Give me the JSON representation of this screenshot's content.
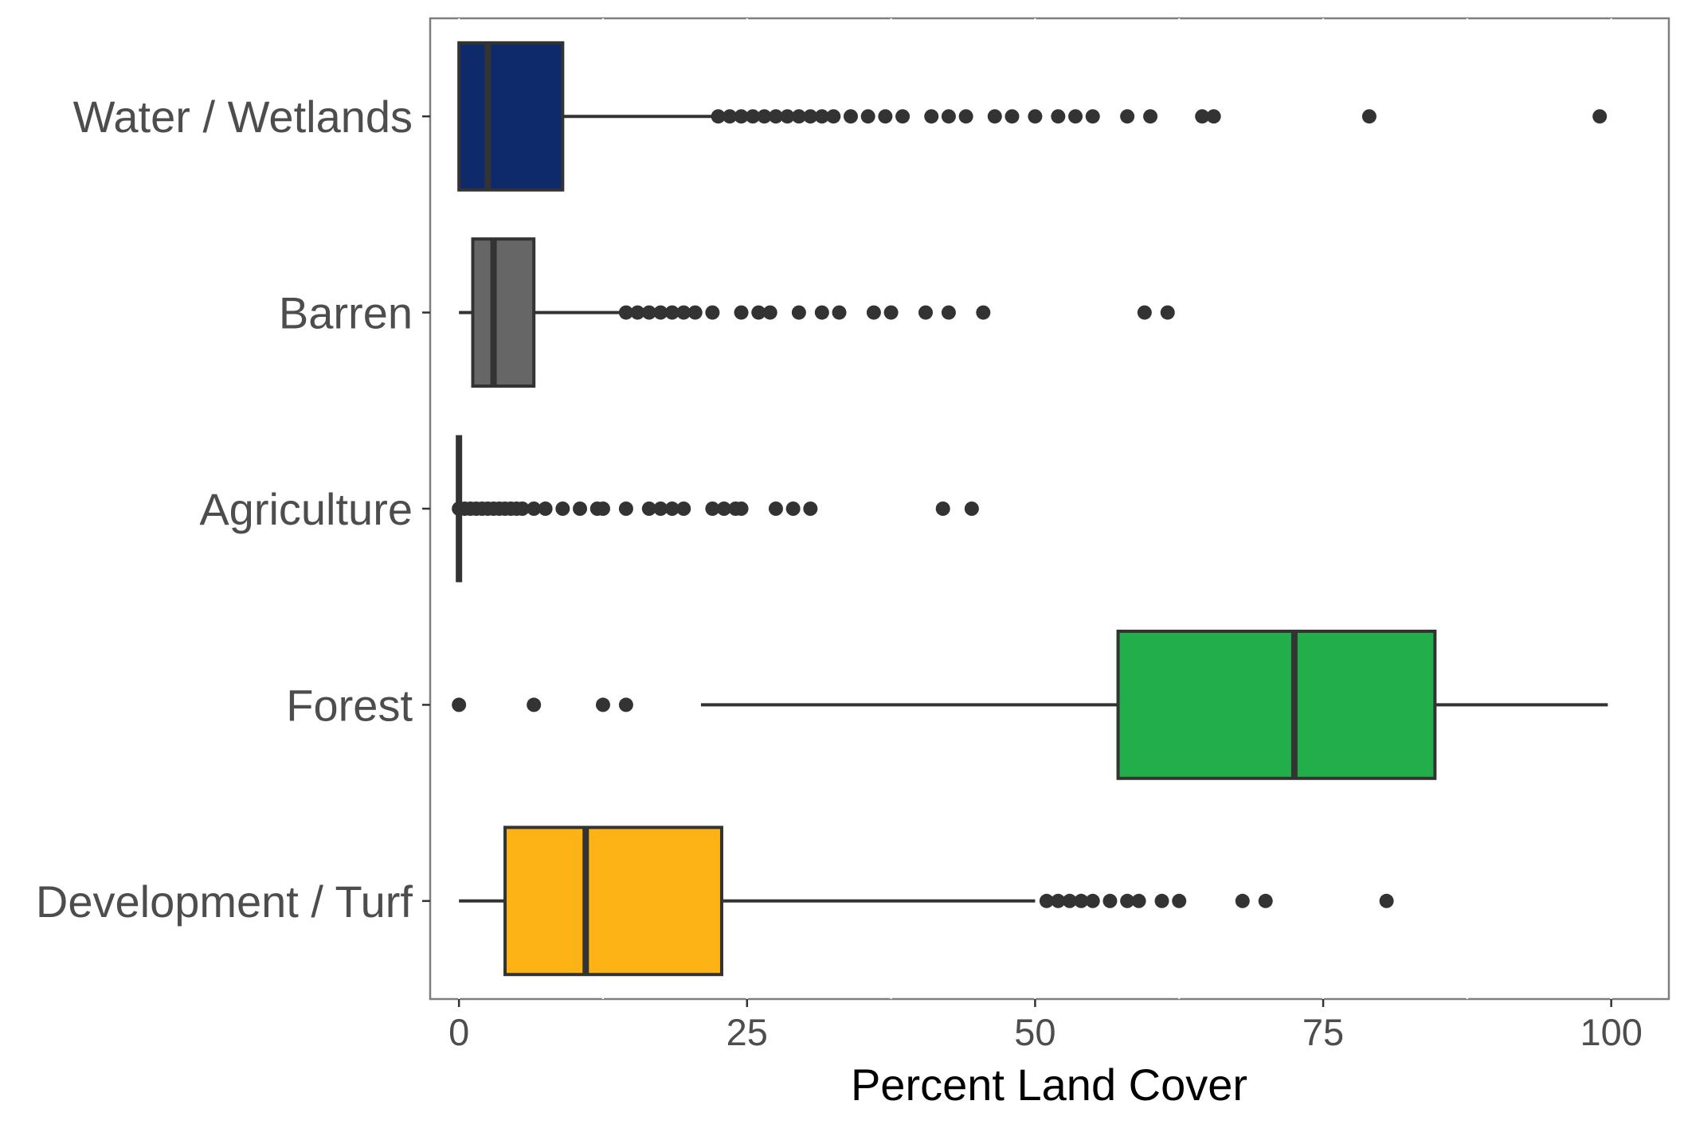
{
  "chart_data": {
    "type": "boxplot",
    "orientation": "horizontal",
    "title": "",
    "xlabel": "Percent Land Cover",
    "ylabel": "",
    "xlim": [
      -2.5,
      105
    ],
    "x_ticks": [
      0,
      25,
      50,
      75,
      100
    ],
    "x_tick_labels": [
      "0",
      "25",
      "50",
      "75",
      "100"
    ],
    "grid": true,
    "legend": "none",
    "categories": [
      "Water / Wetlands",
      "Barren",
      "Agriculture",
      "Forest",
      "Development / Turf"
    ],
    "series": [
      {
        "name": "Water / Wetlands",
        "color": "#0e2a6b",
        "whisker_low": 0,
        "q1": 0,
        "median": 2.5,
        "q3": 9,
        "whisker_high": 22,
        "outliers": [
          22.5,
          23.5,
          24.5,
          25.5,
          26.5,
          27.5,
          28.5,
          29.5,
          30.5,
          31.5,
          32.5,
          34,
          35.5,
          37,
          38.5,
          41,
          42.5,
          44,
          46.5,
          48,
          50,
          52,
          53.5,
          55,
          58,
          60,
          64.5,
          65.5,
          79,
          99
        ]
      },
      {
        "name": "Barren",
        "color": "#666666",
        "whisker_low": 0,
        "q1": 1.2,
        "median": 3,
        "q3": 6.5,
        "whisker_high": 14,
        "outliers": [
          14.5,
          15.5,
          16.5,
          17.5,
          18.5,
          19.5,
          20.5,
          22,
          24.5,
          26,
          27,
          29.5,
          31.5,
          33,
          36,
          37.5,
          40.5,
          42.5,
          45.5,
          59.5,
          61.5
        ]
      },
      {
        "name": "Agriculture",
        "color": "#666666",
        "whisker_low": 0,
        "q1": 0,
        "median": 0,
        "q3": 0,
        "whisker_high": 0,
        "outliers": [
          0,
          0.5,
          1,
          1.5,
          2,
          2.5,
          3,
          3.5,
          4,
          4.5,
          5,
          5.5,
          6.5,
          7.5,
          9,
          10.5,
          12,
          12.5,
          14.5,
          16.5,
          17.5,
          18.5,
          19.5,
          22,
          23,
          24,
          24.5,
          27.5,
          29,
          30.5,
          42,
          44.5
        ]
      },
      {
        "name": "Forest",
        "color": "#22ae4b",
        "whisker_low": 21,
        "q1": 57.2,
        "median": 72.5,
        "q3": 84.7,
        "whisker_high": 99.7,
        "outliers": [
          0,
          6.5,
          12.5,
          14.5
        ]
      },
      {
        "name": "Development / Turf",
        "color": "#fdb316",
        "whisker_low": 0,
        "q1": 4,
        "median": 11,
        "q3": 22.8,
        "whisker_high": 50,
        "outliers": [
          51,
          52,
          53,
          54,
          55,
          56.5,
          58,
          59,
          61,
          62.5,
          68,
          70,
          80.5
        ]
      }
    ]
  }
}
